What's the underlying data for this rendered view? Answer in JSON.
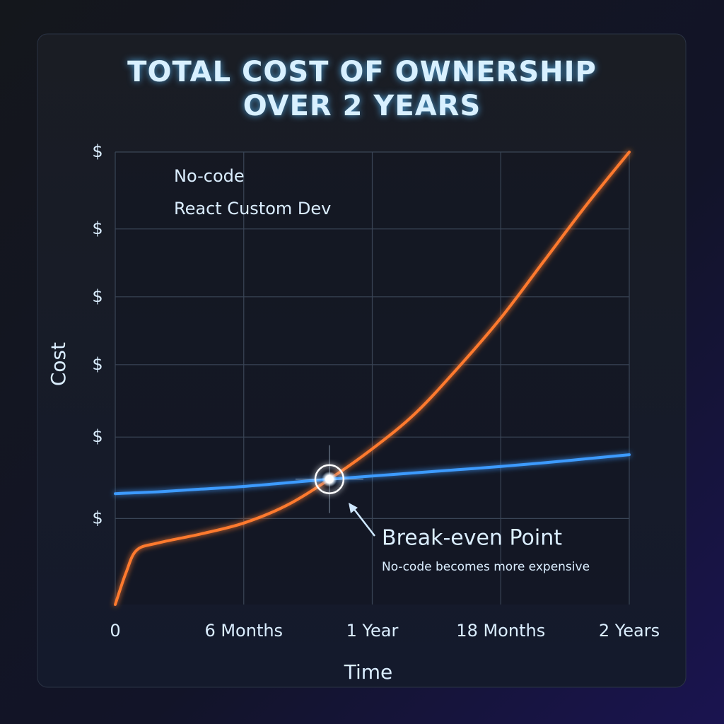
{
  "chart_data": {
    "type": "line",
    "title": "TOTAL COST OF OWNERSHIP OVER 2 YEARS",
    "x_label": "Time",
    "y_label": "Cost",
    "x": [
      0,
      0.5,
      1,
      2,
      4,
      6,
      8,
      10,
      12,
      14,
      16,
      18,
      20,
      22,
      24
    ],
    "series": [
      {
        "name": "No-code",
        "color": "#ff7a2e",
        "values": [
          0,
          7,
          12,
          13.6,
          15.6,
          18,
          21.9,
          27.7,
          34.4,
          42.2,
          52.3,
          63.3,
          75.8,
          88.3,
          100
        ]
      },
      {
        "name": "React Custom Dev",
        "color": "#3d9bff",
        "values": [
          24.5,
          24.6,
          24.7,
          24.9,
          25.5,
          26.1,
          26.9,
          27.7,
          28.4,
          29.1,
          29.8,
          30.5,
          31.3,
          32.2,
          33.1
        ]
      }
    ],
    "xlim": [
      0,
      24
    ],
    "xticks": [
      0,
      {
        "value": 6,
        "label": "6 Months"
      },
      {
        "value": 12,
        "label": "1 Year"
      },
      {
        "value": 18,
        "label": "18 Months"
      },
      {
        "value": 24,
        "label": "2 Years"
      }
    ],
    "ylim": [
      0,
      100
    ],
    "yticks": [
      {
        "value": 19,
        "label": "$"
      },
      {
        "value": 37,
        "label": "$"
      },
      {
        "value": 53,
        "label": "$"
      },
      {
        "value": 68,
        "label": "$"
      },
      {
        "value": 83,
        "label": "$"
      },
      {
        "value": 100,
        "label": "$"
      }
    ],
    "grid": true,
    "legend": "upper left",
    "annotation": {
      "label": "Break-even Point",
      "note": "No-code becomes more expensive",
      "x": 10,
      "y": 27.7
    }
  }
}
